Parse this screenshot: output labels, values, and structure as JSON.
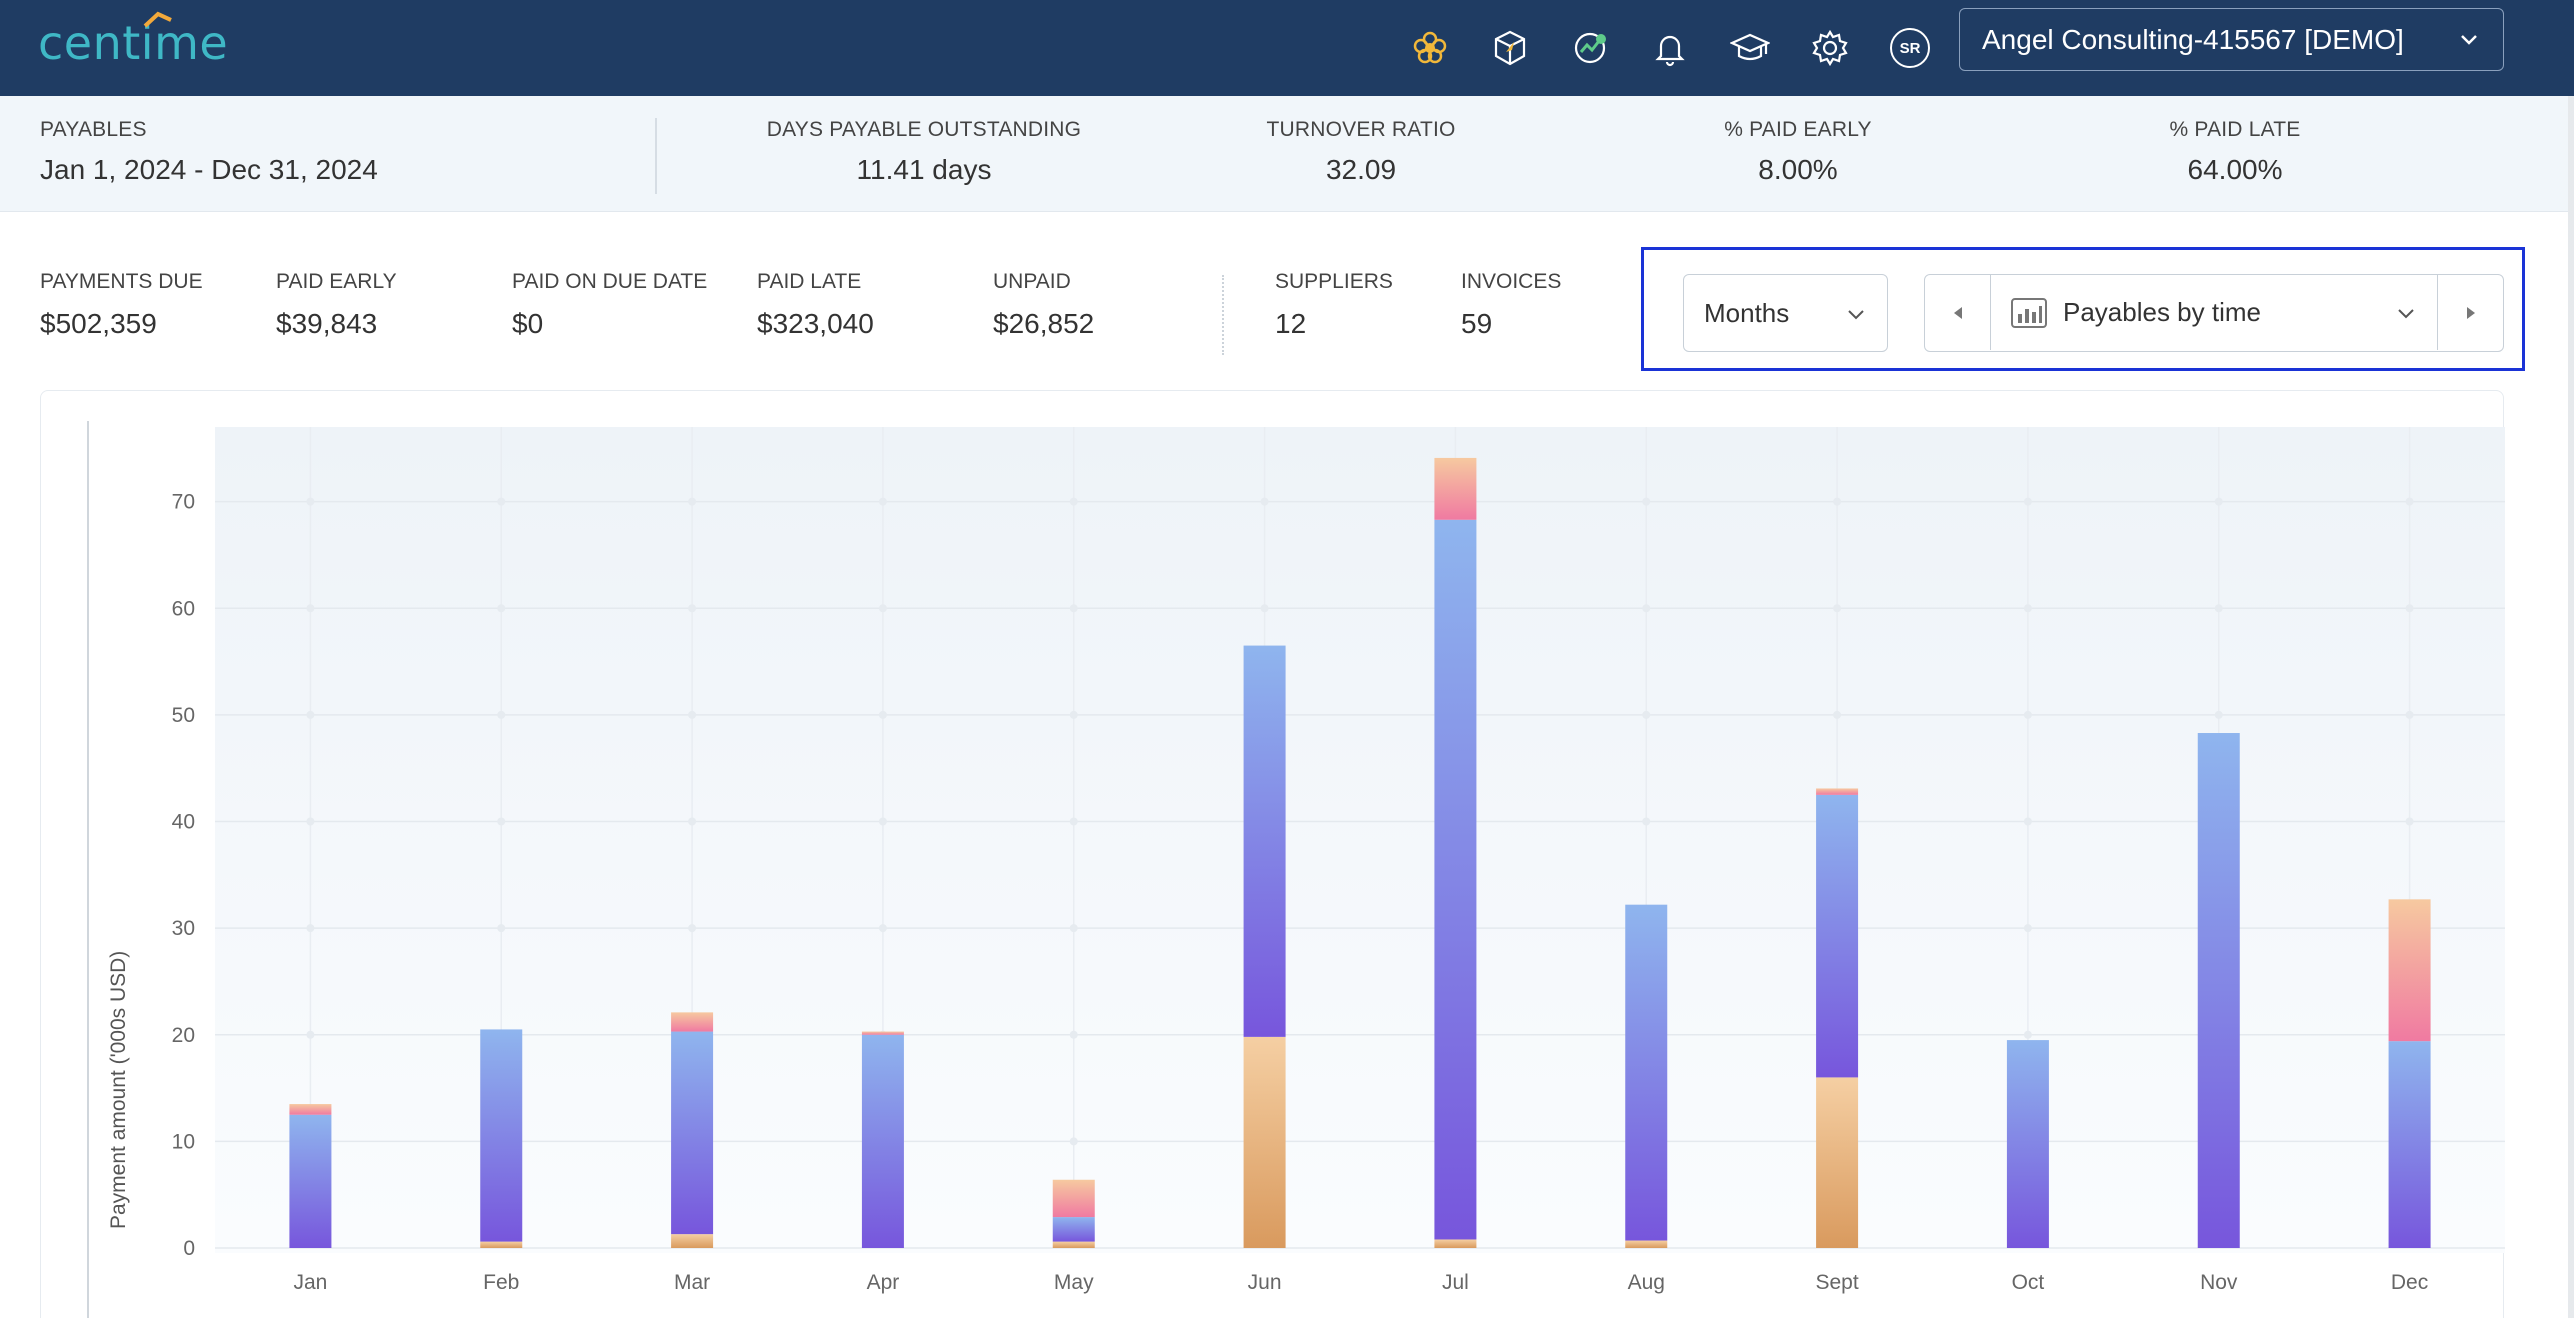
{
  "header": {
    "logo": "centime",
    "company": "Angel Consulting-415567 [DEMO]",
    "avatar_initials": "SR",
    "icons": [
      "flower-icon",
      "cube-icon",
      "growth-icon",
      "bell-icon",
      "graduation-cap-icon",
      "gear-icon"
    ]
  },
  "stats": {
    "payables_label": "PAYABLES",
    "payables_value": "Jan 1, 2024 - Dec 31, 2024",
    "dpo_label": "DAYS PAYABLE OUTSTANDING",
    "dpo_value": "11.41 days",
    "turnover_label": "TURNOVER RATIO",
    "turnover_value": "32.09",
    "paid_early_pct_label": "% PAID EARLY",
    "paid_early_pct_value": "8.00%",
    "paid_late_pct_label": "% PAID LATE",
    "paid_late_pct_value": "64.00%"
  },
  "summary": {
    "payments_due_label": "PAYMENTS DUE",
    "payments_due_value": "$502,359",
    "paid_early_label": "PAID EARLY",
    "paid_early_value": "$39,843",
    "paid_on_due_label": "PAID ON DUE DATE",
    "paid_on_due_value": "$0",
    "paid_late_label": "PAID LATE",
    "paid_late_value": "$323,040",
    "unpaid_label": "UNPAID",
    "unpaid_value": "$26,852",
    "suppliers_label": "SUPPLIERS",
    "suppliers_value": "12",
    "invoices_label": "INVOICES",
    "invoices_value": "59"
  },
  "controls": {
    "period": "Months",
    "view": "Payables by time"
  },
  "colors": {
    "header_bg": "#1f3c63",
    "logo": "#3fb8c6",
    "highlight_border": "#1a33d6",
    "early_top": "#f5cfa3",
    "early_bottom": "#d99a5e",
    "late_top": "#8fb5ee",
    "late_bottom": "#7756dc",
    "unpaid_top": "#f6c9a0",
    "unpaid_bottom": "#f07aa1"
  },
  "chart_data": {
    "type": "bar",
    "stacked": true,
    "ylabel": "Payment amount ('000s USD)",
    "ylim": [
      0,
      77
    ],
    "yticks": [
      0,
      10,
      20,
      30,
      40,
      50,
      60,
      70
    ],
    "grid": true,
    "categories": [
      "Jan",
      "Feb",
      "Mar",
      "Apr",
      "May",
      "Jun",
      "Jul",
      "Aug",
      "Sept",
      "Oct",
      "Nov",
      "Dec"
    ],
    "series": [
      {
        "values": [
          0,
          0.6,
          1.3,
          0,
          0.6,
          19.8,
          0.8,
          0.7,
          16.0,
          0,
          0,
          0
        ]
      },
      {
        "values": [
          12.5,
          19.9,
          19.0,
          20.0,
          2.3,
          36.7,
          67.5,
          31.5,
          26.5,
          19.5,
          48.3,
          19.4
        ]
      },
      {
        "values": [
          1.0,
          0,
          1.8,
          0.3,
          3.5,
          0,
          5.8,
          0,
          0.6,
          0,
          0,
          13.3
        ]
      }
    ]
  }
}
